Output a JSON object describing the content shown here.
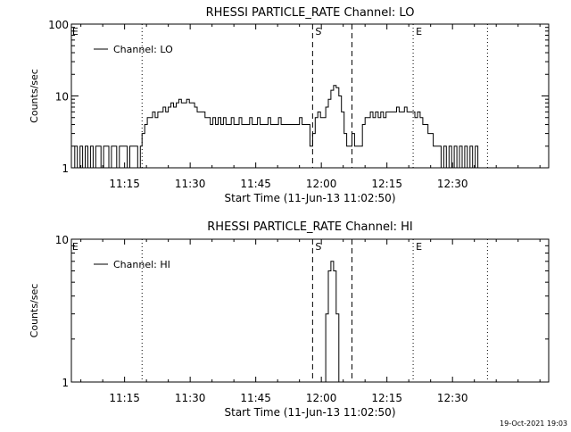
{
  "footer": {
    "timestamp": "19-Oct-2021 19:03"
  },
  "chart_data": [
    {
      "type": "line",
      "title": "RHESSI PARTICLE_RATE Channel: LO",
      "xlabel": "Start Time (11-Jun-13 11:02:50)",
      "ylabel": "Counts/sec",
      "yscale": "log",
      "ylim": [
        1,
        100
      ],
      "yticks": [
        1,
        10,
        100
      ],
      "ytick_labels": [
        "1",
        "10",
        "100"
      ],
      "xlim_minutes": [
        2.83,
        112.0
      ],
      "xticks_minutes": [
        15,
        30,
        45,
        60,
        75,
        90
      ],
      "xtick_labels": [
        "11:15",
        "11:30",
        "11:45",
        "12:00",
        "12:15",
        "12:30"
      ],
      "legend": {
        "label": "Channel: LO",
        "position": "top-left"
      },
      "markers": [
        {
          "type": "dotted",
          "x": 19.0,
          "label": ""
        },
        {
          "type": "dashed",
          "x": 58.0,
          "label": "S"
        },
        {
          "type": "dashed",
          "x": 67.0,
          "label": ""
        },
        {
          "type": "dotted",
          "x": 81.0,
          "label": "E"
        },
        {
          "type": "dotted",
          "x": 98.0,
          "label": ""
        }
      ],
      "corner_labels": [
        {
          "x": 3.0,
          "label": "E"
        }
      ],
      "series": [
        {
          "name": "Channel: LO",
          "x": [
            3,
            3.6,
            4.2,
            4.8,
            5.4,
            6,
            6.6,
            7.2,
            7.8,
            8.4,
            9,
            9.6,
            10.2,
            10.8,
            11.4,
            12,
            12.6,
            13.2,
            13.8,
            14.4,
            15,
            15.6,
            16.2,
            16.8,
            17.4,
            18,
            18.6,
            19,
            19.6,
            20.2,
            20.8,
            21.4,
            22,
            22.6,
            23.2,
            23.8,
            24.4,
            25,
            25.6,
            26.2,
            26.8,
            27.4,
            28,
            28.6,
            29.2,
            29.8,
            30.4,
            31,
            31.6,
            32.2,
            32.8,
            33.4,
            34,
            34.6,
            35.2,
            35.8,
            36.4,
            37,
            37.6,
            38.2,
            38.8,
            39.4,
            40,
            40.6,
            41.2,
            41.8,
            42.4,
            43,
            43.6,
            44.2,
            44.8,
            45.4,
            46,
            46.6,
            47.2,
            47.8,
            48.4,
            49,
            49.6,
            50.2,
            50.8,
            51.4,
            52,
            52.6,
            53.2,
            53.8,
            54.4,
            55,
            55.6,
            56.2,
            56.8,
            57.4,
            58,
            58.6,
            59.2,
            59.8,
            60.4,
            61,
            61.6,
            62.2,
            62.8,
            63.4,
            64,
            64.6,
            65.2,
            65.8,
            66.4,
            67,
            67.6,
            68.2,
            68.8,
            69.4,
            70,
            70.6,
            71.2,
            71.8,
            72.4,
            73,
            73.6,
            74.2,
            74.8,
            75.4,
            76,
            76.6,
            77.2,
            77.8,
            78.4,
            79,
            79.6,
            80.2,
            80.8,
            81.4,
            82,
            82.6,
            83.2,
            83.8,
            84.4,
            85,
            85.6,
            86.2,
            86.8,
            87.4,
            88,
            88.6,
            89.2,
            89.8,
            90.4,
            91,
            91.6,
            92.2,
            92.8,
            93.4,
            94,
            94.6,
            95.2,
            95.8,
            96.4,
            97
          ],
          "values": [
            1,
            2,
            1,
            2,
            1,
            2,
            1,
            2,
            1,
            2,
            2,
            1,
            2,
            2,
            1,
            2,
            2,
            1,
            2,
            2,
            2,
            1,
            2,
            2,
            2,
            1,
            2,
            3,
            4,
            5,
            5,
            6,
            5,
            6,
            6,
            7,
            6,
            7,
            8,
            7,
            8,
            9,
            8,
            8,
            9,
            8,
            8,
            7,
            6,
            6,
            6,
            5,
            5,
            4,
            5,
            4,
            5,
            4,
            5,
            4,
            4,
            5,
            4,
            4,
            5,
            4,
            4,
            4,
            5,
            4,
            4,
            5,
            4,
            4,
            4,
            5,
            4,
            4,
            4,
            5,
            4,
            4,
            4,
            4,
            4,
            4,
            4,
            5,
            4,
            4,
            4,
            2,
            3,
            5,
            6,
            5,
            5,
            7,
            9,
            12,
            14,
            13,
            10,
            6,
            3,
            2,
            2,
            3,
            2,
            2,
            2,
            4,
            5,
            5,
            6,
            5,
            6,
            5,
            6,
            5,
            6,
            6,
            6,
            6,
            7,
            6,
            6,
            7,
            6,
            6,
            6,
            5,
            6,
            5,
            4,
            4,
            3,
            3,
            2,
            2,
            2,
            1,
            2,
            1,
            2,
            1,
            2,
            1,
            2,
            1,
            2,
            1,
            2,
            1,
            2,
            1,
            1,
            1
          ]
        }
      ]
    },
    {
      "type": "line",
      "title": "RHESSI PARTICLE_RATE Channel: HI",
      "xlabel": "Start Time (11-Jun-13 11:02:50)",
      "ylabel": "Counts/sec",
      "yscale": "log",
      "ylim": [
        1,
        10
      ],
      "yticks": [
        1,
        10
      ],
      "ytick_labels": [
        "1",
        "10"
      ],
      "xlim_minutes": [
        2.83,
        112.0
      ],
      "xticks_minutes": [
        15,
        30,
        45,
        60,
        75,
        90
      ],
      "xtick_labels": [
        "11:15",
        "11:30",
        "11:45",
        "12:00",
        "12:15",
        "12:30"
      ],
      "legend": {
        "label": "Channel: HI",
        "position": "top-left"
      },
      "markers": [
        {
          "type": "dotted",
          "x": 19.0,
          "label": ""
        },
        {
          "type": "dashed",
          "x": 58.0,
          "label": "S"
        },
        {
          "type": "dashed",
          "x": 67.0,
          "label": ""
        },
        {
          "type": "dotted",
          "x": 81.0,
          "label": "E"
        },
        {
          "type": "dotted",
          "x": 98.0,
          "label": ""
        }
      ],
      "corner_labels": [
        {
          "x": 3.0,
          "label": "E"
        }
      ],
      "series": [
        {
          "name": "Channel: HI",
          "x": [
            60.6,
            61.0,
            61.6,
            62.2,
            62.8,
            63.4,
            64.0
          ],
          "values": [
            1,
            3,
            6,
            7,
            6,
            3,
            1
          ]
        }
      ]
    }
  ]
}
